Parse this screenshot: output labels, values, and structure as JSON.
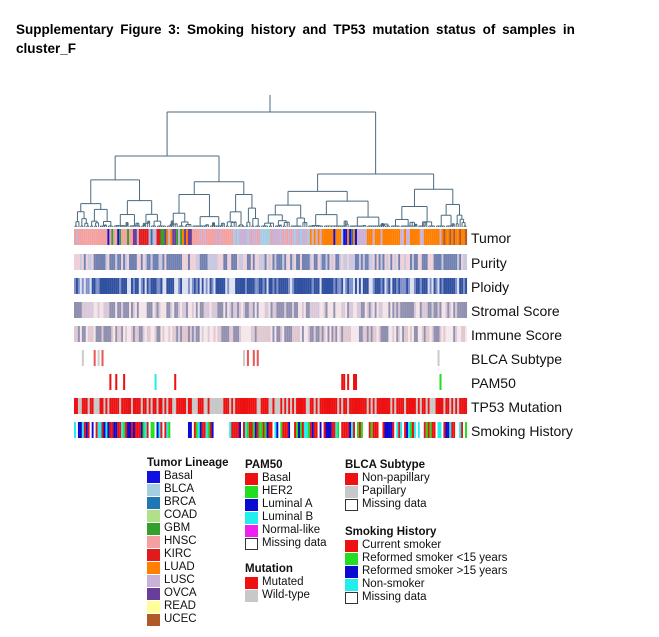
{
  "caption": "Supplementary Figure 3: Smoking history and TP53 mutation status of samples in cluster_F",
  "colors": {
    "Basal_lineage": "#1010e0",
    "BLCA": "#a6cee3",
    "BRCA": "#1f78b4",
    "COAD": "#b2df8a",
    "GBM": "#33a02c",
    "HNSC": "#f4a0a0",
    "KIRC": "#e31a1c",
    "LUAD": "#ff7f00",
    "LUSC": "#cab2d6",
    "OVCA": "#6a3d9a",
    "READ": "#ffff99",
    "UCEC": "#b15928",
    "red": "#ee1111",
    "green": "#22dd22",
    "blue": "#0a0ad0",
    "cyan": "#22eeee",
    "magenta": "#ee22ee",
    "grey": "#c8c8c8",
    "purity": "#7080b0",
    "ploidy": "#3050a0",
    "dendrogram": "#4a6a80"
  },
  "tracks": {
    "tumor": "Tumor",
    "purity": "Purity",
    "ploidy": "Ploidy",
    "stromal": "Stromal Score",
    "immune": "Immune Score",
    "blca": "BLCA Subtype",
    "pam50": "PAM50",
    "tp53": "TP53 Mutation",
    "smoking": "Smoking History"
  },
  "legend": {
    "tumor_lineage": {
      "title": "Tumor Lineage",
      "items": [
        "Basal",
        "BLCA",
        "BRCA",
        "COAD",
        "GBM",
        "HNSC",
        "KIRC",
        "LUAD",
        "LUSC",
        "OVCA",
        "READ",
        "UCEC"
      ]
    },
    "pam50": {
      "title": "PAM50",
      "items": [
        "Basal",
        "HER2",
        "Luminal A",
        "Luminal B",
        "Normal-like",
        "Missing data"
      ]
    },
    "mutation": {
      "title": "Mutation",
      "items": [
        "Mutated",
        "Wild-type"
      ]
    },
    "blca_subtype": {
      "title": "BLCA Subtype",
      "items": [
        "Non-papillary",
        "Papillary",
        "Missing data"
      ]
    },
    "smoking_history": {
      "title": "Smoking History",
      "items": [
        "Current smoker",
        "Reformed smoker <15 years",
        "Reformed smoker >15 years",
        "Non-smoker",
        "Missing data"
      ]
    }
  }
}
